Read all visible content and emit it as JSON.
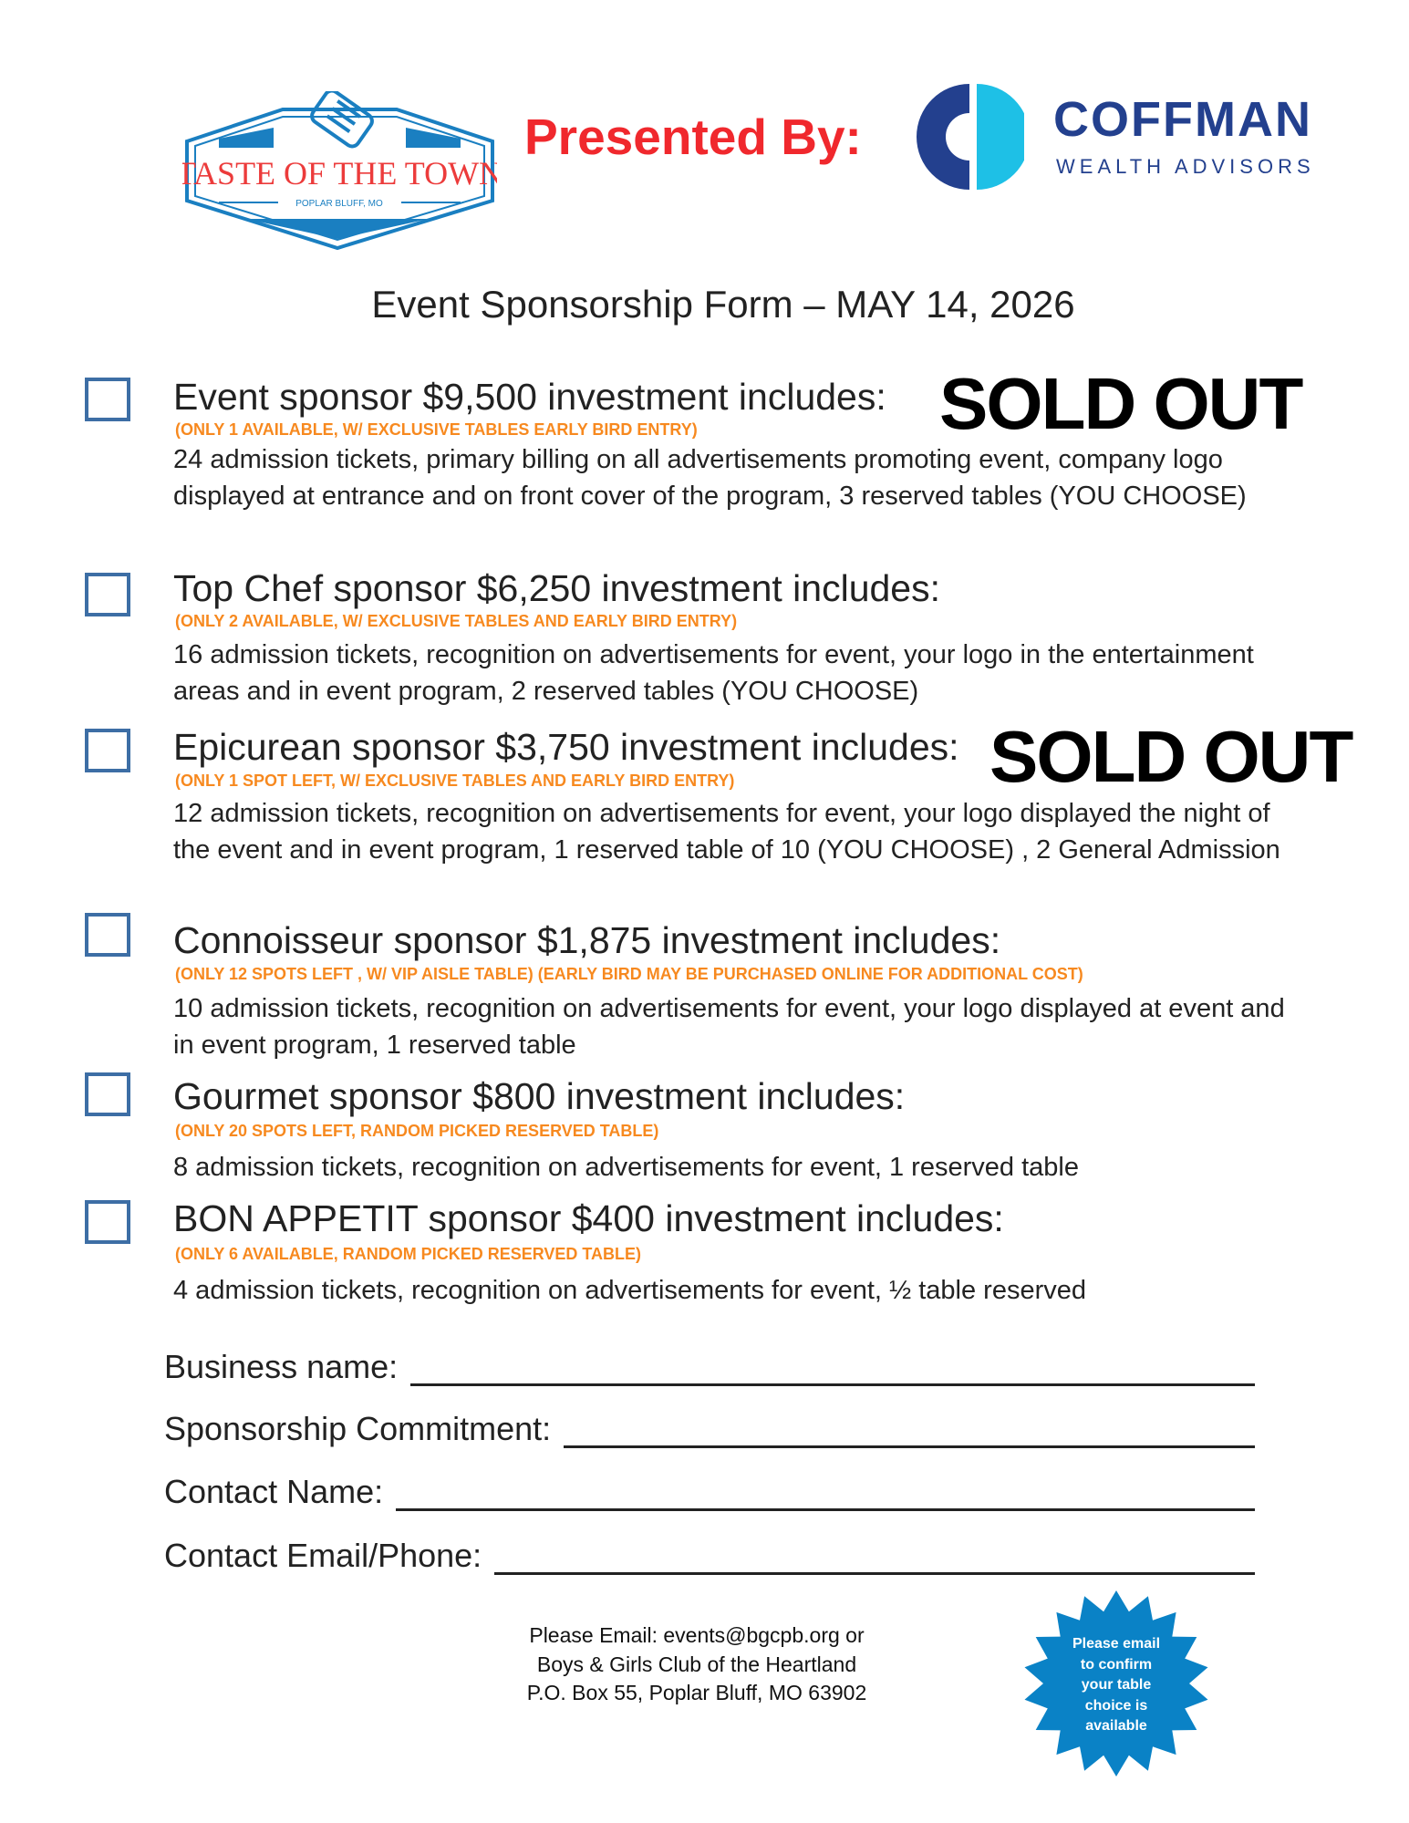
{
  "header": {
    "event_logo": {
      "title": "TASTE OF THE TOWN",
      "subtitle": "POPLAR BLUFF, MO"
    },
    "presented_by": "Presented By:",
    "sponsor_logo": {
      "name": "COFFMAN",
      "tagline": "WEALTH ADVISORS"
    }
  },
  "title": "Event Sponsorship Form – MAY 14, 2026",
  "sold_out_label": "SOLD OUT",
  "sections": [
    {
      "heading": "Event sponsor $9,500 investment includes:",
      "note": "(ONLY 1 AVAILABLE, W/ EXCLUSIVE TABLES EARLY BIRD ENTRY)",
      "body": "24 admission tickets, primary billing on all advertisements promoting event, company logo displayed at entrance and on front cover of the program, 3 reserved tables (YOU CHOOSE)",
      "sold_out": true
    },
    {
      "heading": "Top Chef sponsor $6,250 investment includes:",
      "note": "(ONLY 2 AVAILABLE, W/ EXCLUSIVE TABLES AND EARLY BIRD ENTRY)",
      "body": "16 admission tickets, recognition on advertisements for event, your logo in the entertainment areas and in event program, 2 reserved tables (YOU CHOOSE)",
      "sold_out": false
    },
    {
      "heading": "Epicurean sponsor $3,750 investment includes:",
      "note": "(ONLY 1 SPOT LEFT, W/ EXCLUSIVE TABLES AND EARLY BIRD ENTRY)",
      "body": "12 admission tickets, recognition on advertisements for event, your logo displayed the night of the event and in event program, 1 reserved table of 10 (YOU CHOOSE) , 2 General Admission",
      "sold_out": true
    },
    {
      "heading": "Connoisseur sponsor $1,875 investment includes:",
      "note": "(ONLY 12 SPOTS  LEFT , W/ VIP AISLE TABLE) (EARLY BIRD MAY BE PURCHASED ONLINE FOR ADDITIONAL COST)",
      "body": "10 admission tickets, recognition on advertisements for event, your logo displayed at event and in event program, 1 reserved table",
      "sold_out": false
    },
    {
      "heading": "Gourmet sponsor $800 investment includes:",
      "note": "(ONLY 20  SPOTS LEFT,  RANDOM PICKED RESERVED TABLE)",
      "body": "8 admission tickets, recognition on advertisements for event, 1 reserved table",
      "sold_out": false
    },
    {
      "heading": "BON APPETIT sponsor $400 investment includes:",
      "note": "(ONLY 6 AVAILABLE, RANDOM PICKED RESERVED TABLE)",
      "body": "4 admission tickets, recognition on advertisements for event, ½ table reserved",
      "sold_out": false
    }
  ],
  "form_fields": [
    {
      "label": "Business name:",
      "value": ""
    },
    {
      "label": "Sponsorship Commitment:",
      "value": ""
    },
    {
      "label": "Contact Name:",
      "value": ""
    },
    {
      "label": "Contact Email/Phone:",
      "value": ""
    }
  ],
  "footer": {
    "lines": [
      "Please Email: events@bgcpb.org or",
      "Boys & Girls Club of the Heartland",
      "P.O. Box 55, Poplar Bluff, MO 63902"
    ]
  },
  "badge": {
    "lines": [
      "Please email",
      "to confirm",
      "your table",
      "choice is",
      "available"
    ],
    "color": "#0a82c6"
  },
  "colors": {
    "accent_red": "#f0282d",
    "note_orange": "#f7891f",
    "brand_blue": "#23408e",
    "checkbox_blue": "#3d6ea5"
  }
}
